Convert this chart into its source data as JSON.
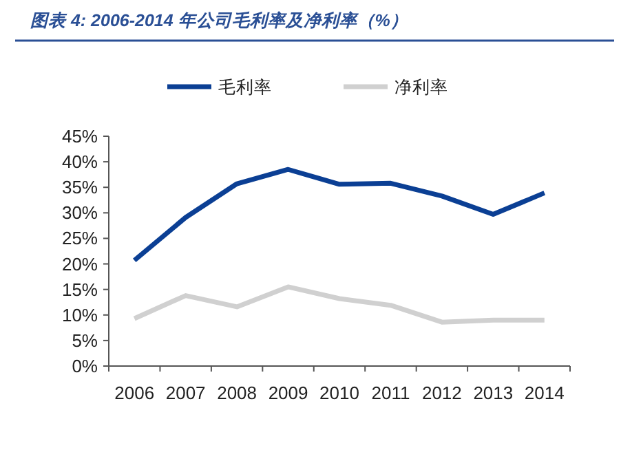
{
  "chart_data": {
    "type": "line",
    "title": "图表 4:  2006-2014 年公司毛利率及净利率（%）",
    "categories": [
      "2006",
      "2007",
      "2008",
      "2009",
      "2010",
      "2011",
      "2012",
      "2013",
      "2014"
    ],
    "series": [
      {
        "name": "毛利率",
        "color": "#0b3f94",
        "values": [
          20.7,
          29.1,
          35.7,
          38.5,
          35.6,
          35.8,
          33.3,
          29.7,
          33.9
        ]
      },
      {
        "name": "净利率",
        "color": "#d0d0d0",
        "values": [
          9.3,
          13.8,
          11.6,
          15.5,
          13.2,
          11.9,
          8.6,
          9.0,
          9.0
        ]
      }
    ],
    "ylim": [
      0,
      45
    ],
    "yticks": [
      {
        "value": 0,
        "label": "0%"
      },
      {
        "value": 5,
        "label": "5%"
      },
      {
        "value": 10,
        "label": "10%"
      },
      {
        "value": 15,
        "label": "15%"
      },
      {
        "value": 20,
        "label": "20%"
      },
      {
        "value": 25,
        "label": "25%"
      },
      {
        "value": 30,
        "label": "30%"
      },
      {
        "value": 35,
        "label": "35%"
      },
      {
        "value": 40,
        "label": "40%"
      },
      {
        "value": 45,
        "label": "45%"
      }
    ],
    "legend": "top"
  }
}
